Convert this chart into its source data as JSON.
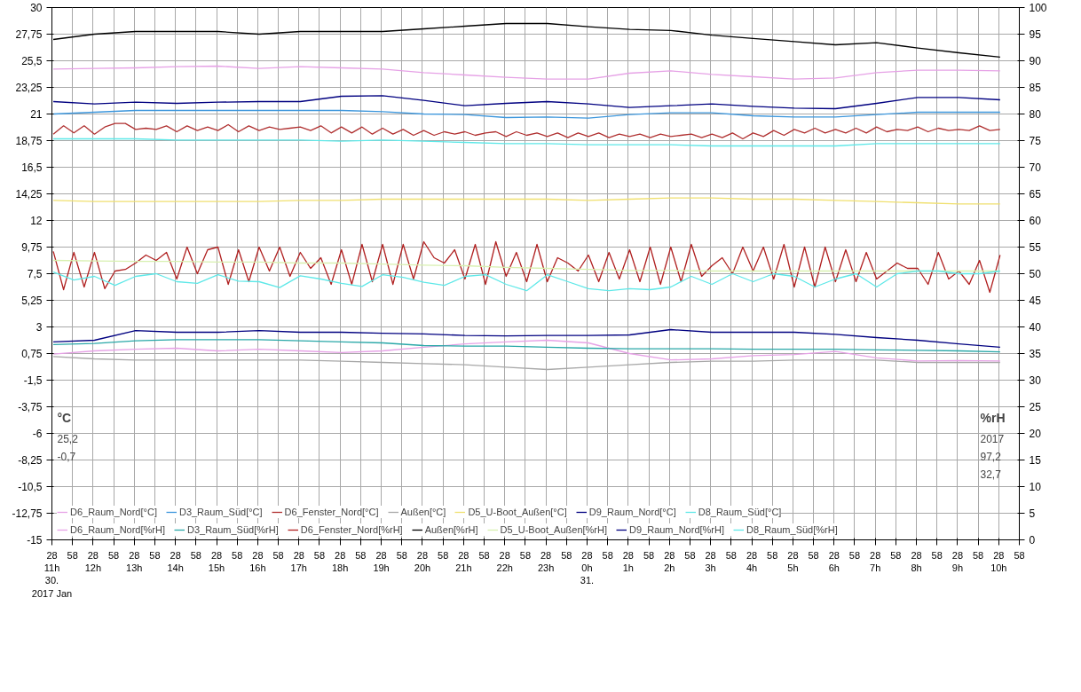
{
  "chart_data": {
    "type": "line",
    "xlim": [
      "2017-01-30T11:28",
      "2017-01-31T10:58"
    ],
    "ylim": [
      -15,
      30
    ],
    "y2lim": [
      0,
      100
    ],
    "xticks": [
      {
        "value": "2017-01-30T11:28",
        "label": "28\n11h\n30.\n2017 Jan"
      },
      {
        "value": "2017-01-30T11:58",
        "label": "58"
      },
      {
        "value": "2017-01-30T12:28",
        "label": "28\n12h"
      },
      {
        "value": "2017-01-30T12:58",
        "label": "58"
      },
      {
        "value": "2017-01-30T13:28",
        "label": "28\n13h"
      },
      {
        "value": "2017-01-30T13:58",
        "label": "58"
      },
      {
        "value": "2017-01-30T14:28",
        "label": "28\n14h"
      },
      {
        "value": "2017-01-30T14:58",
        "label": "58"
      },
      {
        "value": "2017-01-30T15:28",
        "label": "28\n15h"
      },
      {
        "value": "2017-01-30T15:58",
        "label": "58"
      },
      {
        "value": "2017-01-30T16:28",
        "label": "28\n16h"
      },
      {
        "value": "2017-01-30T16:58",
        "label": "58"
      },
      {
        "value": "2017-01-30T17:28",
        "label": "28\n17h"
      },
      {
        "value": "2017-01-30T17:58",
        "label": "58"
      },
      {
        "value": "2017-01-30T18:28",
        "label": "28\n18h"
      },
      {
        "value": "2017-01-30T18:58",
        "label": "58"
      },
      {
        "value": "2017-01-30T19:28",
        "label": "28\n19h"
      },
      {
        "value": "2017-01-30T19:58",
        "label": "58"
      },
      {
        "value": "2017-01-30T20:28",
        "label": "28\n20h"
      },
      {
        "value": "2017-01-30T20:58",
        "label": "58"
      },
      {
        "value": "2017-01-30T21:28",
        "label": "28\n21h"
      },
      {
        "value": "2017-01-30T21:58",
        "label": "58"
      },
      {
        "value": "2017-01-30T22:28",
        "label": "28\n22h"
      },
      {
        "value": "2017-01-30T22:58",
        "label": "58"
      },
      {
        "value": "2017-01-30T23:28",
        "label": "28\n23h"
      },
      {
        "value": "2017-01-30T23:58",
        "label": "58"
      },
      {
        "value": "2017-01-31T00:28",
        "label": "28\n0h\n31."
      },
      {
        "value": "2017-01-31T00:58",
        "label": "58"
      },
      {
        "value": "2017-01-31T01:28",
        "label": "28\n1h"
      },
      {
        "value": "2017-01-31T01:58",
        "label": "58"
      },
      {
        "value": "2017-01-31T02:28",
        "label": "28\n2h"
      },
      {
        "value": "2017-01-31T02:58",
        "label": "58"
      },
      {
        "value": "2017-01-31T03:28",
        "label": "28\n3h"
      },
      {
        "value": "2017-01-31T03:58",
        "label": "58"
      },
      {
        "value": "2017-01-31T04:28",
        "label": "28\n4h"
      },
      {
        "value": "2017-01-31T04:58",
        "label": "58"
      },
      {
        "value": "2017-01-31T05:28",
        "label": "28\n5h"
      },
      {
        "value": "2017-01-31T05:58",
        "label": "58"
      },
      {
        "value": "2017-01-31T06:28",
        "label": "28\n6h"
      },
      {
        "value": "2017-01-31T06:58",
        "label": "58"
      },
      {
        "value": "2017-01-31T07:28",
        "label": "28\n7h"
      },
      {
        "value": "2017-01-31T07:58",
        "label": "58"
      },
      {
        "value": "2017-01-31T08:28",
        "label": "28\n8h"
      },
      {
        "value": "2017-01-31T08:58",
        "label": "58"
      },
      {
        "value": "2017-01-31T09:28",
        "label": "28\n9h"
      },
      {
        "value": "2017-01-31T09:58",
        "label": "58"
      },
      {
        "value": "2017-01-31T10:28",
        "label": "28\n10h"
      },
      {
        "value": "2017-01-31T10:58",
        "label": "58"
      }
    ],
    "yticks": [
      -15,
      {
        "value": -12.75,
        "label": "-12,75"
      },
      {
        "value": -10.5,
        "label": "-10,5"
      },
      {
        "value": -8.25,
        "label": "-8,25"
      },
      -6,
      {
        "value": -3.75,
        "label": "-3,75"
      },
      {
        "value": -1.5,
        "label": "-1,5"
      },
      {
        "value": 0.75,
        "label": "0,75"
      },
      3,
      {
        "value": 5.25,
        "label": "5,25"
      },
      {
        "value": 7.5,
        "label": "7,5"
      },
      {
        "value": 9.75,
        "label": "9,75"
      },
      12,
      {
        "value": 14.25,
        "label": "14,25"
      },
      {
        "value": 16.5,
        "label": "16,5"
      },
      {
        "value": 18.75,
        "label": "18,75"
      },
      21,
      {
        "value": 23.25,
        "label": "23,25"
      },
      {
        "value": 25.5,
        "label": "25,5"
      },
      {
        "value": 27.75,
        "label": "27,75"
      },
      30
    ],
    "y2ticks": [
      0,
      5,
      10,
      15,
      20,
      25,
      30,
      35,
      40,
      45,
      50,
      55,
      60,
      65,
      70,
      75,
      80,
      85,
      90,
      95,
      100
    ],
    "grid": true,
    "legend": "bottom",
    "annotations": [
      "°C",
      "25,2",
      "-0,7",
      "%rH",
      "2017",
      "97,2",
      "32,7"
    ],
    "x": [
      "2017-01-30T11:30",
      "2017-01-30T12:30",
      "2017-01-30T13:30",
      "2017-01-30T14:30",
      "2017-01-30T15:30",
      "2017-01-30T16:30",
      "2017-01-30T17:30",
      "2017-01-30T18:30",
      "2017-01-30T19:30",
      "2017-01-30T20:30",
      "2017-01-30T21:30",
      "2017-01-30T22:30",
      "2017-01-30T23:30",
      "2017-01-31T00:30",
      "2017-01-31T01:30",
      "2017-01-31T02:30",
      "2017-01-31T03:30",
      "2017-01-31T04:30",
      "2017-01-31T05:30",
      "2017-01-31T06:30",
      "2017-01-31T07:30",
      "2017-01-31T08:30",
      "2017-01-31T09:30",
      "2017-01-31T10:30"
    ],
    "series": [
      {
        "name": "D6_Raum_Nord[°C]",
        "color": "#e6a2e6",
        "values": [
          24.8,
          24.85,
          24.9,
          25.0,
          25.05,
          24.85,
          25.0,
          24.9,
          24.8,
          24.5,
          24.3,
          24.1,
          23.95,
          23.95,
          24.45,
          24.65,
          24.35,
          24.15,
          23.95,
          24.05,
          24.5,
          24.7,
          24.7,
          24.65
        ]
      },
      {
        "name": "D3_Raum_Süd[°C]",
        "color": "#3c96dc",
        "values": [
          21.0,
          21.15,
          21.3,
          21.3,
          21.3,
          21.3,
          21.3,
          21.3,
          21.2,
          21.0,
          20.95,
          20.7,
          20.75,
          20.65,
          20.95,
          21.1,
          21.1,
          20.85,
          20.75,
          20.75,
          20.95,
          21.15,
          21.15,
          21.15
        ]
      },
      {
        "name": "D6_Fenster_Nord[°C]",
        "color": "#b03030",
        "x": [
          "2017-01-30T11:30",
          "2017-01-30T11:45",
          "2017-01-30T12:00",
          "2017-01-30T12:15",
          "2017-01-30T12:30",
          "2017-01-30T12:45",
          "2017-01-30T13:00",
          "2017-01-30T13:15",
          "2017-01-30T13:30",
          "2017-01-30T13:45",
          "2017-01-30T14:00",
          "2017-01-30T14:15",
          "2017-01-30T14:30",
          "2017-01-30T14:45",
          "2017-01-30T15:00",
          "2017-01-30T15:15",
          "2017-01-30T15:30",
          "2017-01-30T15:45",
          "2017-01-30T16:00",
          "2017-01-30T16:15",
          "2017-01-30T16:30",
          "2017-01-30T16:45",
          "2017-01-30T17:00",
          "2017-01-30T17:15",
          "2017-01-30T17:30",
          "2017-01-30T17:45",
          "2017-01-30T18:00",
          "2017-01-30T18:15",
          "2017-01-30T18:30",
          "2017-01-30T18:45",
          "2017-01-30T19:00",
          "2017-01-30T19:15",
          "2017-01-30T19:30",
          "2017-01-30T19:45",
          "2017-01-30T20:00",
          "2017-01-30T20:15",
          "2017-01-30T20:30",
          "2017-01-30T20:45",
          "2017-01-30T21:00",
          "2017-01-30T21:15",
          "2017-01-30T21:30",
          "2017-01-30T21:45",
          "2017-01-30T22:00",
          "2017-01-30T22:15",
          "2017-01-30T22:30",
          "2017-01-30T22:45",
          "2017-01-30T23:00",
          "2017-01-30T23:15",
          "2017-01-30T23:30",
          "2017-01-30T23:45",
          "2017-01-31T00:00",
          "2017-01-31T00:15",
          "2017-01-31T00:30",
          "2017-01-31T00:45",
          "2017-01-31T01:00",
          "2017-01-31T01:15",
          "2017-01-31T01:30",
          "2017-01-31T01:45",
          "2017-01-31T02:00",
          "2017-01-31T02:15",
          "2017-01-31T02:30",
          "2017-01-31T02:45",
          "2017-01-31T03:00",
          "2017-01-31T03:15",
          "2017-01-31T03:30",
          "2017-01-31T03:45",
          "2017-01-31T04:00",
          "2017-01-31T04:15",
          "2017-01-31T04:30",
          "2017-01-31T04:45",
          "2017-01-31T05:00",
          "2017-01-31T05:15",
          "2017-01-31T05:30",
          "2017-01-31T05:45",
          "2017-01-31T06:00",
          "2017-01-31T06:15",
          "2017-01-31T06:30",
          "2017-01-31T06:45",
          "2017-01-31T07:00",
          "2017-01-31T07:15",
          "2017-01-31T07:30",
          "2017-01-31T07:45",
          "2017-01-31T08:00",
          "2017-01-31T08:15",
          "2017-01-31T08:30",
          "2017-01-31T08:45",
          "2017-01-31T09:00",
          "2017-01-31T09:15",
          "2017-01-31T09:30",
          "2017-01-31T09:45",
          "2017-01-31T10:00",
          "2017-01-31T10:15",
          "2017-01-31T10:30"
        ],
        "values": [
          19.3,
          20.0,
          19.4,
          20.0,
          19.3,
          19.9,
          20.2,
          20.2,
          19.7,
          19.8,
          19.7,
          20.0,
          19.5,
          20.0,
          19.6,
          19.9,
          19.6,
          20.1,
          19.5,
          20.0,
          19.6,
          19.9,
          19.7,
          19.8,
          19.9,
          19.6,
          20.0,
          19.4,
          19.9,
          19.4,
          19.9,
          19.3,
          19.8,
          19.3,
          19.7,
          19.2,
          19.6,
          19.2,
          19.5,
          19.3,
          19.5,
          19.2,
          19.4,
          19.5,
          19.1,
          19.5,
          19.2,
          19.4,
          19.1,
          19.4,
          19.0,
          19.4,
          19.1,
          19.4,
          19.0,
          19.3,
          19.1,
          19.3,
          19.0,
          19.3,
          19.1,
          19.2,
          19.3,
          19.0,
          19.3,
          19.0,
          19.4,
          18.9,
          19.4,
          19.1,
          19.6,
          19.2,
          19.7,
          19.4,
          19.8,
          19.4,
          19.7,
          19.4,
          19.8,
          19.4,
          19.9,
          19.5,
          19.7,
          19.6,
          19.9,
          19.5,
          19.8,
          19.6,
          19.7,
          19.6,
          20.0,
          19.6,
          19.7
        ]
      },
      {
        "name": "Außen[°C]",
        "color": "#a8a8a8",
        "values": [
          0.5,
          0.3,
          0.2,
          0.2,
          0.2,
          0.2,
          0.2,
          0.1,
          0.0,
          -0.1,
          -0.2,
          -0.4,
          -0.6,
          -0.4,
          -0.2,
          0.0,
          0.1,
          0.1,
          0.2,
          0.2,
          0.2,
          0.0,
          0.0,
          0.0
        ]
      },
      {
        "name": "D5_U-Boot_Außen[°C]",
        "color": "#f0e070",
        "values": [
          13.7,
          13.6,
          13.6,
          13.6,
          13.6,
          13.6,
          13.7,
          13.7,
          13.8,
          13.8,
          13.8,
          13.8,
          13.8,
          13.7,
          13.8,
          13.9,
          13.9,
          13.8,
          13.8,
          13.7,
          13.6,
          13.5,
          13.4,
          13.4
        ]
      },
      {
        "name": "D9_Raum_Nord[°C]",
        "color": "#000080",
        "values": [
          22.05,
          21.85,
          22.0,
          21.9,
          22.0,
          22.05,
          22.05,
          22.5,
          22.55,
          22.15,
          21.7,
          21.9,
          22.05,
          21.85,
          21.55,
          21.7,
          21.85,
          21.65,
          21.5,
          21.45,
          21.9,
          22.4,
          22.4,
          22.2
        ]
      },
      {
        "name": "D8_Raum_Süd[°C]",
        "color": "#5ee8e8",
        "values": [
          18.9,
          18.9,
          18.9,
          18.8,
          18.8,
          18.8,
          18.8,
          18.7,
          18.8,
          18.7,
          18.6,
          18.5,
          18.5,
          18.4,
          18.4,
          18.4,
          18.3,
          18.3,
          18.3,
          18.3,
          18.5,
          18.5,
          18.5,
          18.5
        ]
      },
      {
        "name": "D6_Raum_Nord[%rH]",
        "color": "#e6a2e6",
        "axis": "y2",
        "values": [
          34.9,
          35.5,
          35.8,
          36.0,
          35.5,
          35.8,
          35.5,
          35.2,
          35.5,
          36.2,
          36.8,
          37.2,
          37.5,
          37.0,
          35.0,
          33.8,
          34.0,
          34.6,
          34.8,
          35.4,
          34.2,
          33.6,
          33.7,
          33.6
        ]
      },
      {
        "name": "D3_Raum_Süd[%rH]",
        "color": "#2aa8a8",
        "axis": "y2",
        "values": [
          36.7,
          36.9,
          37.4,
          37.6,
          37.6,
          37.6,
          37.4,
          37.2,
          37.0,
          36.5,
          36.4,
          36.4,
          36.2,
          36.0,
          35.9,
          35.9,
          35.9,
          35.8,
          35.8,
          35.8,
          35.7,
          35.6,
          35.5,
          35.3
        ]
      },
      {
        "name": "D6_Fenster_Nord[%rH]",
        "color": "#b02020",
        "axis": "y2",
        "x": [
          "2017-01-30T11:30",
          "2017-01-30T11:45",
          "2017-01-30T12:00",
          "2017-01-30T12:15",
          "2017-01-30T12:30",
          "2017-01-30T12:45",
          "2017-01-30T13:00",
          "2017-01-30T13:15",
          "2017-01-30T13:30",
          "2017-01-30T13:45",
          "2017-01-30T14:00",
          "2017-01-30T14:15",
          "2017-01-30T14:30",
          "2017-01-30T14:45",
          "2017-01-30T15:00",
          "2017-01-30T15:15",
          "2017-01-30T15:30",
          "2017-01-30T15:45",
          "2017-01-30T16:00",
          "2017-01-30T16:15",
          "2017-01-30T16:30",
          "2017-01-30T16:45",
          "2017-01-30T17:00",
          "2017-01-30T17:15",
          "2017-01-30T17:30",
          "2017-01-30T17:45",
          "2017-01-30T18:00",
          "2017-01-30T18:15",
          "2017-01-30T18:30",
          "2017-01-30T18:45",
          "2017-01-30T19:00",
          "2017-01-30T19:15",
          "2017-01-30T19:30",
          "2017-01-30T19:45",
          "2017-01-30T20:00",
          "2017-01-30T20:15",
          "2017-01-30T20:30",
          "2017-01-30T20:45",
          "2017-01-30T21:00",
          "2017-01-30T21:15",
          "2017-01-30T21:30",
          "2017-01-30T21:45",
          "2017-01-30T22:00",
          "2017-01-30T22:15",
          "2017-01-30T22:30",
          "2017-01-30T22:45",
          "2017-01-30T23:00",
          "2017-01-30T23:15",
          "2017-01-30T23:30",
          "2017-01-30T23:45",
          "2017-01-31T00:00",
          "2017-01-31T00:15",
          "2017-01-31T00:30",
          "2017-01-31T00:45",
          "2017-01-31T01:00",
          "2017-01-31T01:15",
          "2017-01-31T01:30",
          "2017-01-31T01:45",
          "2017-01-31T02:00",
          "2017-01-31T02:15",
          "2017-01-31T02:30",
          "2017-01-31T02:45",
          "2017-01-31T03:00",
          "2017-01-31T03:15",
          "2017-01-31T03:30",
          "2017-01-31T03:45",
          "2017-01-31T04:00",
          "2017-01-31T04:15",
          "2017-01-31T04:30",
          "2017-01-31T04:45",
          "2017-01-31T05:00",
          "2017-01-31T05:15",
          "2017-01-31T05:30",
          "2017-01-31T05:45",
          "2017-01-31T06:00",
          "2017-01-31T06:15",
          "2017-01-31T06:30",
          "2017-01-31T06:45",
          "2017-01-31T07:00",
          "2017-01-31T07:15",
          "2017-01-31T07:30",
          "2017-01-31T07:45",
          "2017-01-31T08:00",
          "2017-01-31T08:15",
          "2017-01-31T08:30",
          "2017-01-31T08:45",
          "2017-01-31T09:00",
          "2017-01-31T09:15",
          "2017-01-31T09:30",
          "2017-01-31T09:45",
          "2017-01-31T10:00",
          "2017-01-31T10:15",
          "2017-01-31T10:30"
        ],
        "values": [
          54.2,
          47.0,
          54.0,
          47.5,
          54.0,
          47.2,
          50.5,
          50.8,
          52.0,
          53.5,
          52.5,
          54.0,
          49.0,
          55.0,
          50.0,
          54.5,
          55.0,
          48.0,
          54.5,
          48.5,
          55.0,
          50.5,
          55.0,
          49.5,
          54.0,
          51.0,
          53.0,
          48.0,
          54.5,
          48.0,
          55.5,
          48.5,
          55.5,
          48.0,
          55.5,
          49.0,
          56.0,
          53.0,
          52.0,
          54.5,
          49.0,
          55.5,
          48.0,
          56.0,
          49.5,
          54.0,
          48.5,
          55.5,
          48.5,
          53.0,
          52.0,
          50.5,
          53.5,
          48.5,
          54.0,
          49.0,
          54.5,
          48.5,
          55.0,
          48.0,
          55.0,
          48.5,
          55.5,
          49.5,
          51.5,
          53.0,
          50.0,
          55.0,
          50.5,
          55.0,
          49.0,
          55.5,
          47.5,
          55.0,
          47.5,
          55.0,
          48.5,
          54.5,
          48.5,
          54.0,
          49.0,
          50.5,
          52.0,
          51.0,
          51.0,
          48.0,
          54.0,
          49.0,
          50.5,
          48.0,
          52.5,
          46.5,
          53.5
        ]
      },
      {
        "name": "Außen[%rH]",
        "color": "#000000",
        "axis": "y2",
        "values": [
          94.0,
          95.0,
          95.5,
          95.5,
          95.5,
          95.0,
          95.5,
          95.5,
          95.5,
          96.0,
          96.5,
          97.0,
          97.0,
          96.4,
          95.9,
          95.7,
          94.8,
          94.2,
          93.6,
          93.0,
          93.4,
          92.4,
          91.5,
          90.7
        ]
      },
      {
        "name": "D5_U-Boot_Außen[%rH]",
        "color": "#d8f0b0",
        "axis": "y2",
        "values": [
          52.5,
          52.4,
          52.3,
          52.3,
          52.2,
          52.2,
          52.0,
          52.0,
          51.8,
          51.6,
          51.5,
          51.2,
          51.0,
          50.8,
          50.6,
          50.6,
          50.5,
          50.5,
          50.5,
          50.5,
          50.5,
          50.5,
          50.5,
          50.5
        ]
      },
      {
        "name": "D9_Raum_Nord[%rH]",
        "color": "#000080",
        "axis": "y2",
        "values": [
          37.2,
          37.5,
          39.3,
          39.0,
          39.0,
          39.3,
          39.0,
          39.0,
          38.8,
          38.7,
          38.4,
          38.3,
          38.4,
          38.4,
          38.5,
          39.5,
          39.0,
          39.0,
          39.0,
          38.6,
          38.0,
          37.5,
          36.8,
          36.2
        ]
      },
      {
        "name": "D8_Raum_Süd[%rH]",
        "color": "#5ee8e8",
        "axis": "y2",
        "x": [
          "2017-01-30T11:30",
          "2017-01-30T12:00",
          "2017-01-30T12:30",
          "2017-01-30T13:00",
          "2017-01-30T13:30",
          "2017-01-30T14:00",
          "2017-01-30T14:30",
          "2017-01-30T15:00",
          "2017-01-30T15:30",
          "2017-01-30T16:00",
          "2017-01-30T16:30",
          "2017-01-30T17:00",
          "2017-01-30T17:30",
          "2017-01-30T18:00",
          "2017-01-30T18:30",
          "2017-01-30T19:00",
          "2017-01-30T19:30",
          "2017-01-30T20:00",
          "2017-01-30T20:30",
          "2017-01-30T21:00",
          "2017-01-30T21:30",
          "2017-01-30T22:00",
          "2017-01-30T22:30",
          "2017-01-30T23:00",
          "2017-01-30T23:30",
          "2017-01-31T00:00",
          "2017-01-31T00:30",
          "2017-01-31T01:00",
          "2017-01-31T01:30",
          "2017-01-31T02:00",
          "2017-01-31T02:30",
          "2017-01-31T03:00",
          "2017-01-31T03:30",
          "2017-01-31T04:00",
          "2017-01-31T04:30",
          "2017-01-31T05:00",
          "2017-01-31T05:30",
          "2017-01-31T06:00",
          "2017-01-31T06:30",
          "2017-01-31T07:00",
          "2017-01-31T07:30",
          "2017-01-31T08:00",
          "2017-01-31T08:30",
          "2017-01-31T09:00",
          "2017-01-31T09:30",
          "2017-01-31T10:00",
          "2017-01-31T10:30"
        ],
        "values": [
          50.3,
          48.8,
          49.5,
          47.8,
          49.5,
          50.0,
          48.5,
          48.2,
          49.8,
          48.6,
          48.5,
          47.4,
          49.6,
          49.0,
          48.2,
          47.6,
          49.8,
          49.3,
          48.4,
          47.8,
          49.5,
          49.8,
          48.0,
          46.8,
          49.8,
          48.5,
          47.2,
          46.8,
          47.2,
          47.0,
          47.5,
          49.5,
          48.0,
          50.0,
          48.5,
          50.0,
          49.5,
          47.5,
          49.0,
          50.0,
          47.5,
          50.0,
          50.5,
          50.5,
          50.0,
          50.0,
          50.5
        ]
      }
    ]
  }
}
